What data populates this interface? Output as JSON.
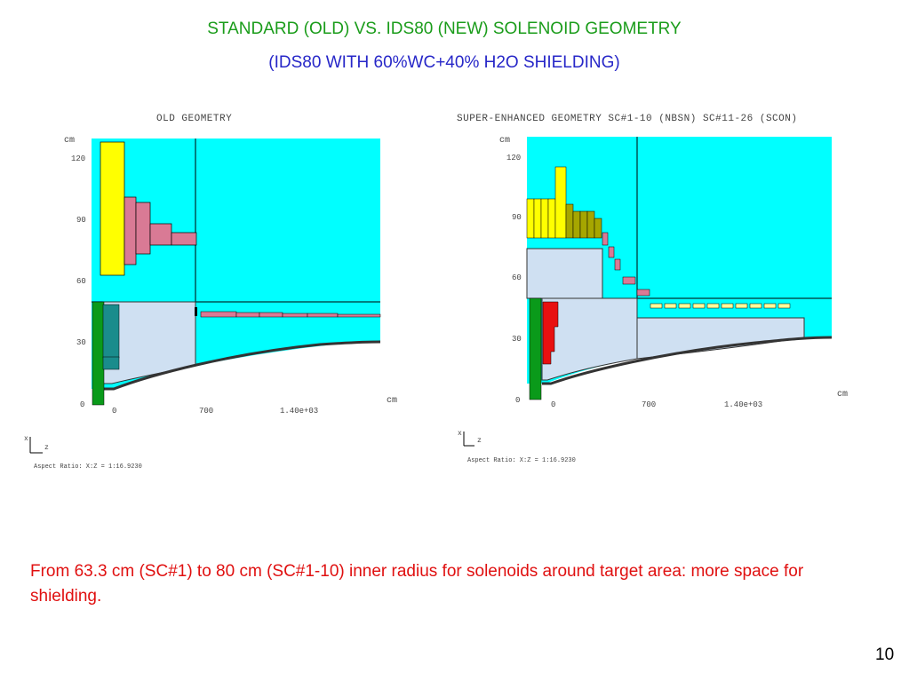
{
  "slide": {
    "title": "STANDARD (OLD) VS.  IDS80 (NEW)  SOLENOID GEOMETRY",
    "subtitle": "(IDS80 WITH  60%WC+40% H2O SHIELDING)",
    "note": "From 63.3 cm (SC#1)  to 80 cm (SC#1-10) inner radius for solenoids around target area: more space for shielding.",
    "page_number": "10"
  },
  "colors": {
    "title": "#1a9c1a",
    "subtitle": "#2727c8",
    "note": "#e01010",
    "background_region": "#00ffff",
    "coil_yellow": "#ffff00",
    "coil_pink": "#d97a95",
    "shield_blue": "#cfe0f2",
    "target_green": "#0a9a1a",
    "coil_teal": "#1a8c8c",
    "coil_red": "#e81010",
    "coil_olive": "#a6a600"
  },
  "chart_data": [
    {
      "type": "geometry",
      "title": "OLD GEOMETRY",
      "x_unit": "cm",
      "y_unit": "cm",
      "x_ticks": [
        "0",
        "700",
        "1.40e+03"
      ],
      "y_ticks": [
        "0",
        "30",
        "60",
        "90",
        "120"
      ],
      "orientation_labels": {
        "x": "x",
        "z": "z"
      },
      "aspect_ratio": "Aspect Ratio: X:Z = 1:16.9230"
    },
    {
      "type": "geometry",
      "title": "SUPER-ENHANCED GEOMETRY SC#1-10 (NBSN) SC#11-26 (SCON)",
      "x_unit": "cm",
      "y_unit": "cm",
      "x_ticks": [
        "0",
        "700",
        "1.40e+03"
      ],
      "y_ticks": [
        "0",
        "30",
        "60",
        "90",
        "120"
      ],
      "orientation_labels": {
        "x": "x",
        "z": "z"
      },
      "aspect_ratio": "Aspect Ratio: X:Z = 1:16.9230"
    }
  ]
}
